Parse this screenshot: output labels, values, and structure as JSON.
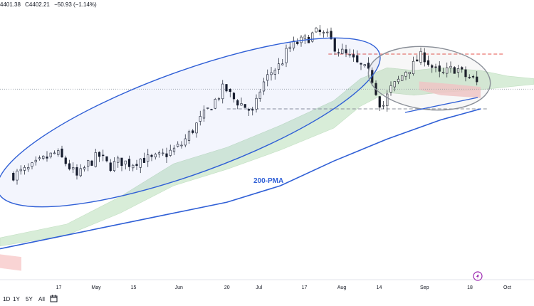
{
  "header": {
    "high": "4401.38",
    "close": "C4402.21",
    "change": "−50.93 (−1.14%)"
  },
  "toolbar": {
    "range_1d": "1D",
    "range_1y": "1Y",
    "range_5y": "5Y",
    "range_all": "All",
    "calendar_icon": "calendar-icon"
  },
  "annotations": {
    "ma_label": "200-PMA",
    "flash_icon": "lightning-icon"
  },
  "chart_data": {
    "type": "candlestick",
    "title": "",
    "xlabel": "",
    "ylabel": "",
    "x_tick_labels": [
      "17",
      "May",
      "15",
      "Jun",
      "20",
      "Jul",
      "17",
      "Aug",
      "14",
      "Sep",
      "18",
      "Oct"
    ],
    "x_tick_days": [
      17,
      31,
      45,
      62,
      80,
      92,
      109,
      123,
      137,
      154,
      171,
      185
    ],
    "x_range_days": [
      -5,
      195
    ],
    "y_range": [
      3700,
      4660
    ],
    "close_path": [
      [
        0,
        4080
      ],
      [
        6,
        4100
      ],
      [
        12,
        4140
      ],
      [
        16,
        4160
      ],
      [
        20,
        4120
      ],
      [
        24,
        4070
      ],
      [
        28,
        4120
      ],
      [
        32,
        4150
      ],
      [
        36,
        4110
      ],
      [
        40,
        4130
      ],
      [
        44,
        4120
      ],
      [
        48,
        4140
      ],
      [
        52,
        4135
      ],
      [
        56,
        4150
      ],
      [
        60,
        4170
      ],
      [
        63,
        4190
      ],
      [
        66,
        4230
      ],
      [
        70,
        4280
      ],
      [
        74,
        4330
      ],
      [
        77,
        4370
      ],
      [
        79,
        4400
      ],
      [
        82,
        4360
      ],
      [
        85,
        4340
      ],
      [
        88,
        4320
      ],
      [
        90,
        4300
      ],
      [
        92,
        4380
      ],
      [
        94,
        4420
      ],
      [
        97,
        4460
      ],
      [
        100,
        4480
      ],
      [
        103,
        4540
      ],
      [
        106,
        4560
      ],
      [
        109,
        4570
      ],
      [
        112,
        4590
      ],
      [
        114,
        4600
      ],
      [
        116,
        4590
      ],
      [
        118,
        4580
      ],
      [
        121,
        4540
      ],
      [
        124,
        4520
      ],
      [
        127,
        4500
      ],
      [
        129,
        4480
      ],
      [
        131,
        4470
      ],
      [
        134,
        4440
      ],
      [
        136,
        4380
      ],
      [
        138,
        4320
      ],
      [
        141,
        4390
      ],
      [
        144,
        4420
      ],
      [
        147,
        4460
      ],
      [
        150,
        4480
      ],
      [
        152,
        4510
      ],
      [
        154,
        4510
      ],
      [
        157,
        4470
      ],
      [
        160,
        4440
      ],
      [
        163,
        4460
      ],
      [
        166,
        4470
      ],
      [
        169,
        4440
      ],
      [
        172,
        4430
      ],
      [
        175,
        4400
      ]
    ],
    "series": [
      {
        "name": "200-PMA",
        "points": [
          [
            -5,
            3810
          ],
          [
            20,
            3860
          ],
          [
            50,
            3920
          ],
          [
            80,
            3980
          ],
          [
            100,
            4040
          ],
          [
            120,
            4130
          ],
          [
            140,
            4210
          ],
          [
            160,
            4280
          ],
          [
            175,
            4320
          ]
        ]
      }
    ],
    "cloud_upper": [
      [
        -5,
        3850
      ],
      [
        20,
        3900
      ],
      [
        40,
        4000
      ],
      [
        60,
        4120
      ],
      [
        80,
        4180
      ],
      [
        100,
        4260
      ],
      [
        120,
        4350
      ],
      [
        130,
        4430
      ],
      [
        140,
        4470
      ],
      [
        150,
        4460
      ],
      [
        160,
        4470
      ],
      [
        175,
        4460
      ],
      [
        185,
        4440
      ],
      [
        195,
        4430
      ]
    ],
    "cloud_lower": [
      [
        -5,
        3820
      ],
      [
        20,
        3860
      ],
      [
        40,
        3940
      ],
      [
        60,
        4040
      ],
      [
        80,
        4100
      ],
      [
        100,
        4170
      ],
      [
        120,
        4250
      ],
      [
        130,
        4330
      ],
      [
        140,
        4380
      ],
      [
        150,
        4370
      ],
      [
        160,
        4380
      ],
      [
        175,
        4390
      ],
      [
        185,
        4400
      ],
      [
        195,
        4410
      ]
    ],
    "levels": [
      {
        "value": 4520,
        "style": "red-dashed"
      },
      {
        "value": 4320,
        "style": "gray-dashed"
      },
      {
        "value": 4392,
        "style": "gray-solid"
      }
    ],
    "grid": false
  }
}
